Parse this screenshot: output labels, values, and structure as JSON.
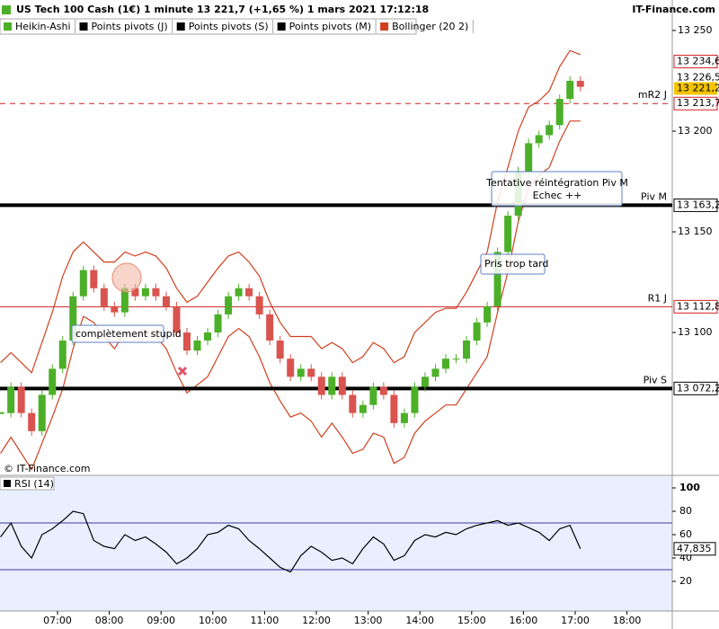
{
  "chart_data": [
    {
      "type": "candlestick",
      "title": "US Tech 100 Cash (1€) 1 minute 13 221,7 (+1,65 %) 1 mars 2021 17:12:18",
      "source": "IT-Finance.com",
      "copyright": "© IT-Finance.com",
      "x": [
        5.9,
        6.1,
        6.3,
        6.5,
        6.7,
        6.9,
        7.1,
        7.3,
        7.5,
        7.7,
        7.9,
        8.1,
        8.3,
        8.5,
        8.7,
        8.9,
        9.1,
        9.3,
        9.5,
        9.7,
        9.9,
        10.1,
        10.3,
        10.5,
        10.7,
        10.9,
        11.1,
        11.3,
        11.5,
        11.7,
        11.9,
        12.1,
        12.3,
        12.5,
        12.7,
        12.9,
        13.1,
        13.3,
        13.5,
        13.7,
        13.9,
        14.1,
        14.3,
        14.5,
        14.7,
        14.9,
        15.1,
        15.3,
        15.5,
        15.7,
        15.9,
        16.1,
        16.3,
        16.5,
        16.7,
        16.9,
        17.1
      ],
      "xlim": [
        5.889,
        18.875
      ],
      "xticks": [
        {
          "value": 7,
          "label": "07:00"
        },
        {
          "value": 8,
          "label": "08:00"
        },
        {
          "value": 9,
          "label": "09:00"
        },
        {
          "value": 10,
          "label": "10:00"
        },
        {
          "value": 11,
          "label": "11:00"
        },
        {
          "value": 12,
          "label": "12:00"
        },
        {
          "value": 13,
          "label": "13:00"
        },
        {
          "value": 14,
          "label": "14:00"
        },
        {
          "value": 15,
          "label": "15:00"
        },
        {
          "value": 16,
          "label": "16:00"
        },
        {
          "value": 17,
          "label": "17:00"
        },
        {
          "value": 18,
          "label": "18:00"
        }
      ],
      "ylim": [
        13029.5,
        13257.1
      ],
      "yticks": [
        {
          "value": 13100,
          "label": "13 100"
        },
        {
          "value": 13150,
          "label": "13 150"
        },
        {
          "value": 13200,
          "label": "13 200"
        },
        {
          "value": 13250,
          "label": "13 250"
        }
      ],
      "series": [
        {
          "name": "Heikin-Ashi",
          "up_color": "#4caf28",
          "down_color": "#d9534f",
          "values": [
            13060,
            13073,
            13060,
            13051,
            13069,
            13082,
            13096,
            13118,
            13131,
            13122,
            13113,
            13110,
            13122,
            13118,
            13122,
            13118,
            13113,
            13100,
            13091,
            13096,
            13100,
            13109,
            13118,
            13122,
            13118,
            13109,
            13096,
            13087,
            13078,
            13082,
            13078,
            13069,
            13078,
            13069,
            13060,
            13064,
            13073,
            13069,
            13055,
            13060,
            13073,
            13078,
            13082,
            13087,
            13087,
            13096,
            13105,
            13113,
            13140,
            13158,
            13180,
            13194,
            13198,
            13203,
            13216,
            13225,
            13222
          ]
        },
        {
          "name": "Bollinger (20 2)",
          "color": "#d0401e",
          "upper": [
            13085,
            13090,
            13085,
            13080,
            13095,
            13110,
            13128,
            13140,
            13145,
            13140,
            13135,
            13135,
            13140,
            13138,
            13140,
            13138,
            13132,
            13122,
            13115,
            13118,
            13125,
            13132,
            13138,
            13140,
            13135,
            13128,
            13115,
            13105,
            13098,
            13098,
            13098,
            13092,
            13095,
            13092,
            13085,
            13088,
            13095,
            13092,
            13085,
            13088,
            13100,
            13105,
            13110,
            13112,
            13112,
            13120,
            13130,
            13140,
            13165,
            13182,
            13200,
            13212,
            13215,
            13220,
            13232,
            13240,
            13238
          ],
          "lower": [
            13040,
            13048,
            13040,
            13032,
            13045,
            13058,
            13072,
            13092,
            13108,
            13105,
            13098,
            13092,
            13100,
            13098,
            13100,
            13098,
            13092,
            13080,
            13070,
            13074,
            13078,
            13088,
            13098,
            13102,
            13098,
            13088,
            13075,
            13066,
            13058,
            13060,
            13056,
            13048,
            13055,
            13048,
            13040,
            13042,
            13050,
            13048,
            13035,
            13038,
            13050,
            13056,
            13060,
            13064,
            13064,
            13072,
            13080,
            13088,
            13110,
            13130,
            13155,
            13172,
            13178,
            13182,
            13195,
            13205,
            13205
          ]
        }
      ],
      "indicators": [
        "Points pivots (J)",
        "Points pivots (S)",
        "Points pivots (M)"
      ],
      "levels": [
        {
          "name": "mR2 J",
          "value": 13213.7,
          "label": "13 213,7",
          "color": "#d02020",
          "style": "dashed"
        },
        {
          "name": "Piv M",
          "value": 13163.2,
          "label": "13 163,2",
          "color": "#000000",
          "style": "thick"
        },
        {
          "name": "R1 J",
          "value": 13112.8,
          "label": "13 112,8",
          "color": "#d02020",
          "style": "thin"
        },
        {
          "name": "Piv S",
          "value": 13072.2,
          "label": "13 072,2",
          "color": "#000000",
          "style": "thick"
        }
      ],
      "price_labels": [
        {
          "value": 13234.6,
          "label": "13 234,6",
          "color": "#d02020",
          "box": "outline"
        },
        {
          "value": 13226.5,
          "label": "13 226,5",
          "color": "#000000",
          "box": "none"
        },
        {
          "value": 13221.2,
          "label": "13 221,2",
          "color": "#f5c400",
          "box": "fill"
        }
      ],
      "annotations": [
        "complètement stupid",
        "Pris trop tard",
        "Tentative réintégration Piv M",
        "Echec ++"
      ]
    },
    {
      "type": "line",
      "title": "RSI (14)",
      "ylim": [
        -5.4,
        110
      ],
      "yticks": [
        20,
        40,
        60,
        80,
        100
      ],
      "bands": [
        30,
        70
      ],
      "series": [
        {
          "name": "RSI (14)",
          "color": "#000000",
          "values": [
            58,
            70,
            50,
            40,
            60,
            65,
            72,
            80,
            78,
            55,
            50,
            48,
            60,
            55,
            58,
            52,
            45,
            35,
            40,
            48,
            60,
            62,
            68,
            65,
            55,
            48,
            40,
            32,
            28,
            42,
            50,
            45,
            38,
            40,
            35,
            48,
            58,
            52,
            38,
            42,
            55,
            60,
            58,
            62,
            60,
            65,
            68,
            70,
            72,
            68,
            70,
            66,
            62,
            55,
            65,
            68,
            47.835
          ]
        }
      ],
      "current": {
        "value": 47.835,
        "label": "47,835"
      }
    }
  ]
}
